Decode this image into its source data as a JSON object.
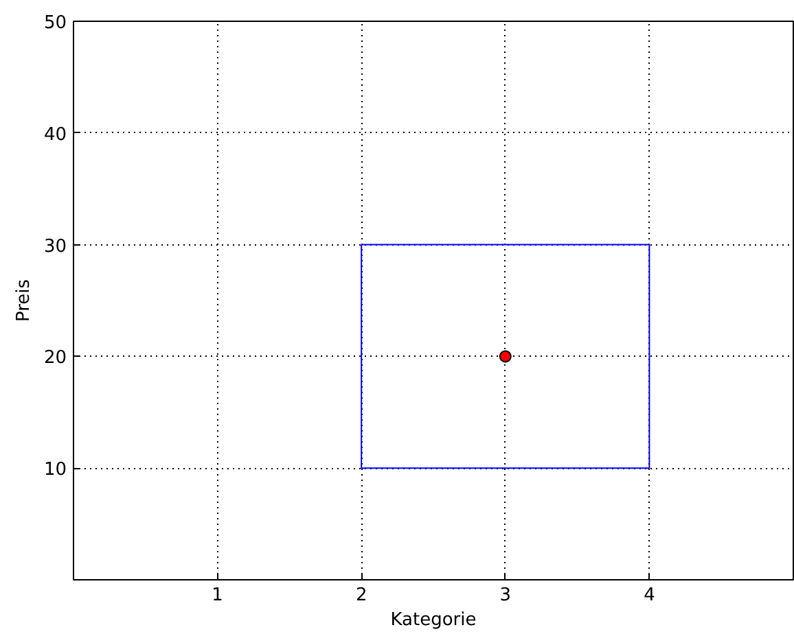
{
  "chart_data": {
    "type": "line",
    "xlabel": "Kategorie",
    "ylabel": "Preis",
    "xlim": [
      0,
      5
    ],
    "xticks": [
      1,
      2,
      3,
      4
    ],
    "ylim": [
      0,
      50
    ],
    "yticks": [
      10,
      20,
      30,
      40,
      50
    ],
    "grid": true,
    "marker": "none",
    "line_style": "solid",
    "series": [
      {
        "type": "line",
        "color": "#0000ff",
        "x": [
          2,
          2,
          4,
          4
        ],
        "values": [
          30,
          10,
          10,
          30
        ]
      },
      {
        "type": "line",
        "color": "#0000ff",
        "x": [
          2,
          4
        ],
        "values": [
          30,
          30
        ]
      },
      {
        "type": "scatter",
        "color": "#ff0000",
        "marker": "circle",
        "x": [
          3
        ],
        "values": [
          20
        ]
      }
    ]
  }
}
